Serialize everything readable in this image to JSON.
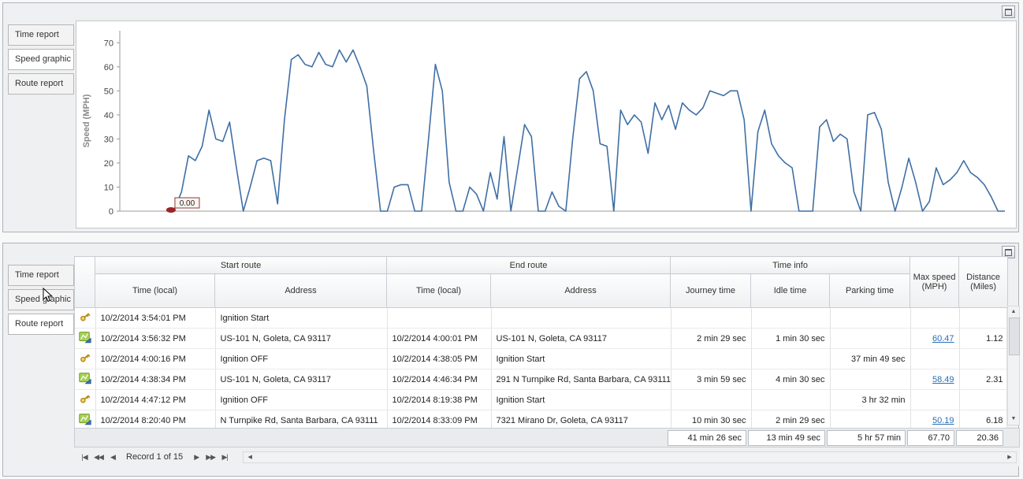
{
  "tabs": {
    "items": [
      "Time report",
      "Speed graphic",
      "Route report"
    ]
  },
  "top_panel": {
    "active_tab": "Speed graphic",
    "window_button": "maximize"
  },
  "bottom_panel": {
    "active_tab": "Route report",
    "window_button": "maximize"
  },
  "chart_data": {
    "type": "line",
    "title": "",
    "xlabel": "",
    "ylabel": "Speed (MPH)",
    "ylim": [
      0,
      75
    ],
    "yticks": [
      0,
      10,
      20,
      30,
      40,
      50,
      60,
      70
    ],
    "grid": false,
    "legend": false,
    "line_color": "#3f6fa5",
    "marker_color": "#9b2226",
    "annotation": {
      "text": "0.00"
    },
    "series": [
      {
        "name": "Speed",
        "values": [
          null,
          null,
          null,
          null,
          null,
          null,
          null,
          0,
          1,
          8,
          23,
          21,
          27,
          42,
          30,
          29,
          37,
          18,
          0,
          10,
          21,
          22,
          21,
          3,
          38,
          63,
          65,
          61,
          60,
          66,
          61,
          60,
          67,
          62,
          67,
          60,
          52,
          25,
          0,
          0,
          10,
          11,
          11,
          0,
          0,
          30,
          61,
          50,
          12,
          0,
          0,
          10,
          7,
          0,
          16,
          5,
          31,
          0,
          18,
          36,
          31,
          0,
          0,
          8,
          2,
          0,
          30,
          55,
          58,
          50,
          28,
          27,
          0,
          42,
          36,
          40,
          37,
          24,
          45,
          38,
          44,
          34,
          45,
          42,
          40,
          43,
          50,
          49,
          48,
          50,
          50,
          38,
          0,
          33,
          42,
          28,
          23,
          20,
          18,
          0,
          0,
          0,
          35,
          38,
          29,
          32,
          30,
          8,
          0,
          40,
          41,
          34,
          12,
          0,
          10,
          22,
          12,
          0,
          4,
          18,
          11,
          13,
          16,
          21,
          16,
          14,
          11,
          6,
          0,
          0
        ]
      }
    ]
  },
  "table": {
    "group_headers": {
      "start_route": "Start route",
      "end_route": "End route",
      "time_info": "Time info"
    },
    "col_headers": {
      "start_time": "Time (local)",
      "start_address": "Address",
      "end_time": "Time (local)",
      "end_address": "Address",
      "journey": "Journey time",
      "idle": "Idle time",
      "parking": "Parking time",
      "max_speed": "Max speed (MPH)",
      "distance": "Distance (Miles)"
    },
    "rows": [
      {
        "icon": "key",
        "start_time": "10/2/2014 3:54:01 PM",
        "start_address": "Ignition Start",
        "end_time": "",
        "end_address": "",
        "journey": "",
        "idle": "",
        "parking": "",
        "max_speed": "",
        "distance": ""
      },
      {
        "icon": "route",
        "start_time": "10/2/2014 3:56:32 PM",
        "start_address": "US-101 N, Goleta, CA 93117",
        "end_time": "10/2/2014 4:00:01 PM",
        "end_address": "US-101 N, Goleta, CA 93117",
        "journey": "2 min 29 sec",
        "idle": "1 min 30 sec",
        "parking": "",
        "max_speed": "60.47",
        "distance": "1.12"
      },
      {
        "icon": "key",
        "start_time": "10/2/2014 4:00:16 PM",
        "start_address": "Ignition OFF",
        "end_time": "10/2/2014 4:38:05 PM",
        "end_address": "Ignition Start",
        "journey": "",
        "idle": "",
        "parking": "37 min 49 sec",
        "max_speed": "",
        "distance": ""
      },
      {
        "icon": "route",
        "start_time": "10/2/2014 4:38:34 PM",
        "start_address": "US-101 N, Goleta, CA 93117",
        "end_time": "10/2/2014 4:46:34 PM",
        "end_address": "291 N Turnpike Rd, Santa Barbara, CA 93111",
        "journey": "3 min 59 sec",
        "idle": "4 min 30 sec",
        "parking": "",
        "max_speed": "58.49",
        "distance": "2.31"
      },
      {
        "icon": "key",
        "start_time": "10/2/2014 4:47:12 PM",
        "start_address": "Ignition OFF",
        "end_time": "10/2/2014 8:19:38 PM",
        "end_address": "Ignition Start",
        "journey": "",
        "idle": "",
        "parking": "3 hr 32 min",
        "max_speed": "",
        "distance": ""
      },
      {
        "icon": "route",
        "start_time": "10/2/2014 8:20:40 PM",
        "start_address": "N Turnpike Rd, Santa Barbara, CA 93111",
        "end_time": "10/2/2014 8:33:09 PM",
        "end_address": "7321 Mirano Dr, Goleta, CA 93117",
        "journey": "10 min 30 sec",
        "idle": "2 min 29 sec",
        "parking": "",
        "max_speed": "50.19",
        "distance": "6.18"
      }
    ],
    "summary": {
      "journey": "41 min 26 sec",
      "idle": "13 min 49 sec",
      "parking": "5 hr 57 min",
      "max_speed": "67.70",
      "distance": "20.36"
    },
    "pager": {
      "first": "|◀",
      "prev_page": "◀◀",
      "prev": "◀",
      "record_text": "Record 1 of 15",
      "next": "▶",
      "next_page": "▶▶",
      "last": "▶|",
      "hscroll_left": "◀",
      "hscroll_right": "▶",
      "vscroll_up": "▲",
      "vscroll_down": "▼"
    }
  }
}
